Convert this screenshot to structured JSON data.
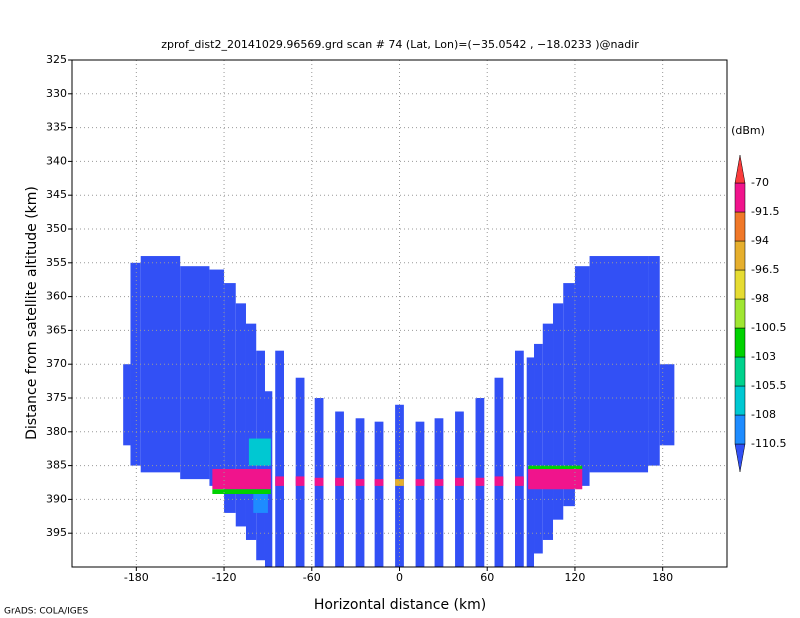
{
  "chart_data": {
    "type": "heatmap",
    "title": "zprof_dist2_20141029.96569.grd   scan # 74   (Lat, Lon)=(−35.0542 , −18.0233 )@nadir",
    "x_label": "Horizontal distance (km)",
    "y_label": "Distance from satellite altitude (km)",
    "colorbar_label": "(dBm)",
    "footer": "GrADS: COLA/IGES",
    "xlim": [
      -224,
      224
    ],
    "ylim": [
      400,
      325
    ],
    "xticks": [
      -180,
      -120,
      -60,
      0,
      60,
      120,
      180
    ],
    "yticks": [
      325,
      330,
      335,
      340,
      345,
      350,
      355,
      360,
      365,
      370,
      375,
      380,
      385,
      390,
      395
    ],
    "grid": true,
    "levels": [
      -110.5,
      -108,
      -105.5,
      -103,
      -100.5,
      -98,
      -96.5,
      -94,
      -91.5,
      -70
    ],
    "colors": [
      "#3250f5",
      "#1e8cff",
      "#00c8d2",
      "#00d28c",
      "#00d200",
      "#a0e632",
      "#e6dc32",
      "#e6af2d",
      "#f07828",
      "#f0148c",
      "#fa3c3c"
    ],
    "cells": [
      [
        -189,
        -184,
        370,
        382,
        -115
      ],
      [
        -184,
        -177,
        355,
        385,
        -115
      ],
      [
        -177,
        -150,
        354,
        386,
        -115
      ],
      [
        -150,
        -130,
        355.5,
        387,
        -115
      ],
      [
        -130,
        -120,
        356,
        388,
        -115
      ],
      [
        -120,
        -112,
        358,
        392,
        -115
      ],
      [
        -112,
        -105,
        361,
        394,
        -115
      ],
      [
        -105,
        -98,
        364,
        396,
        -115
      ],
      [
        -98,
        -92,
        368,
        399,
        -115
      ],
      [
        -92,
        -87,
        374,
        400,
        -115
      ],
      [
        -85,
        -79,
        368,
        400,
        -115
      ],
      [
        -71,
        -65,
        372,
        400,
        -115
      ],
      [
        -58,
        -52,
        375,
        400,
        -115
      ],
      [
        -44,
        -38,
        377,
        400,
        -115
      ],
      [
        -30,
        -24,
        378,
        400,
        -115
      ],
      [
        -17,
        -11,
        378.5,
        400,
        -115
      ],
      [
        -3,
        3,
        376,
        400,
        -115
      ],
      [
        11,
        17,
        378.5,
        400,
        -115
      ],
      [
        24,
        30,
        378,
        400,
        -115
      ],
      [
        38,
        44,
        377,
        400,
        -115
      ],
      [
        52,
        58,
        375,
        400,
        -115
      ],
      [
        65,
        71,
        372,
        400,
        -115
      ],
      [
        79,
        85,
        368,
        400,
        -115
      ],
      [
        87,
        92,
        369,
        400,
        -115
      ],
      [
        92,
        98,
        367,
        398,
        -115
      ],
      [
        98,
        105,
        364,
        396,
        -115
      ],
      [
        105,
        112,
        361,
        393,
        -115
      ],
      [
        112,
        120,
        358,
        391,
        -115
      ],
      [
        120,
        130,
        355.5,
        388,
        -115
      ],
      [
        130,
        170,
        354,
        386,
        -115
      ],
      [
        170,
        178,
        354,
        385,
        -115
      ],
      [
        178,
        188,
        370,
        382,
        -115
      ],
      [
        -103,
        -88,
        381,
        385,
        -106
      ],
      [
        -100,
        -90,
        389,
        392,
        -109
      ],
      [
        -128,
        -88,
        385.5,
        388.5,
        -85
      ],
      [
        88,
        125,
        385.5,
        388.5,
        -85
      ],
      [
        -128,
        -88,
        388.5,
        389.2,
        -101
      ],
      [
        88,
        125,
        385,
        385.5,
        -101
      ],
      [
        -85,
        -79,
        386.6,
        388,
        -85
      ],
      [
        -71,
        -65,
        386.6,
        388,
        -85
      ],
      [
        -58,
        -52,
        386.8,
        388,
        -85
      ],
      [
        -44,
        -38,
        386.8,
        388,
        -85
      ],
      [
        -30,
        -24,
        387,
        388,
        -85
      ],
      [
        -17,
        -11,
        387,
        388,
        -85
      ],
      [
        -3,
        3,
        387,
        388,
        -96
      ],
      [
        11,
        17,
        387,
        388,
        -85
      ],
      [
        24,
        30,
        387,
        388,
        -85
      ],
      [
        38,
        44,
        386.8,
        388,
        -85
      ],
      [
        52,
        58,
        386.8,
        388,
        -85
      ],
      [
        65,
        71,
        386.6,
        388,
        -85
      ],
      [
        79,
        85,
        386.6,
        388,
        -85
      ]
    ]
  }
}
